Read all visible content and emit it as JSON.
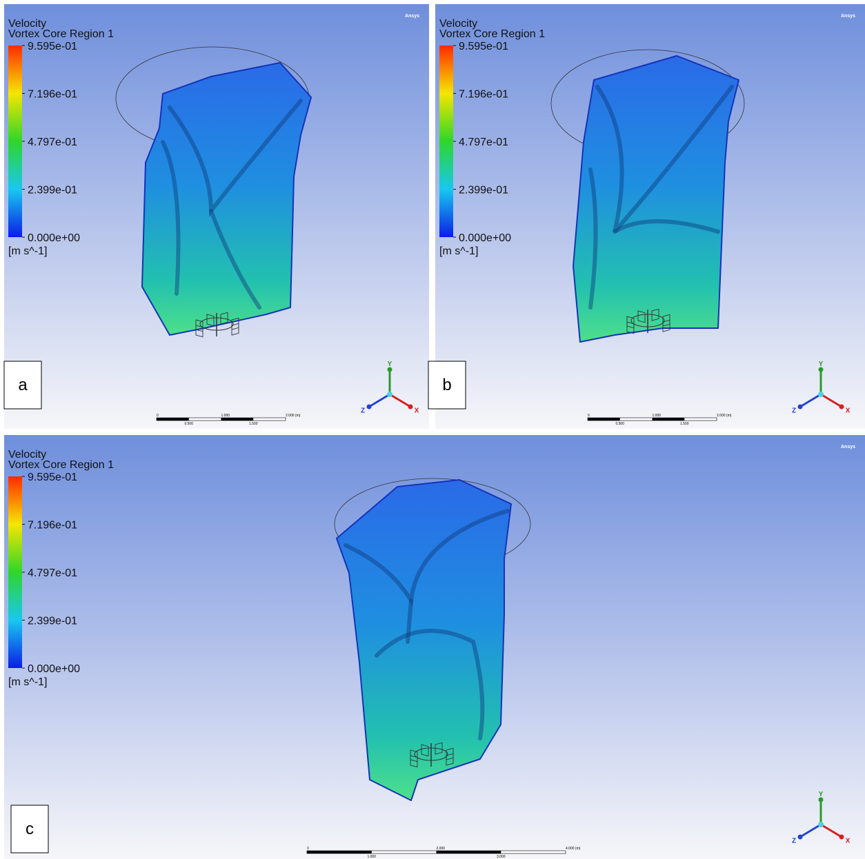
{
  "panels": [
    {
      "label": "a",
      "legend": {
        "title": "Velocity",
        "subtitle": "Vortex Core Region 1",
        "ticks": [
          "9.595e-01",
          "7.196e-01",
          "4.797e-01",
          "2.399e-01",
          "0.000e+00"
        ],
        "unit": "[m s^-1]"
      },
      "logo": "Ansys",
      "scale_bar": {
        "labels": [
          "0",
          "1.000",
          "2.000 (m)"
        ],
        "sub_labels": [
          "0.500",
          "1.500"
        ]
      },
      "axes": [
        "Y",
        "Z",
        "X"
      ]
    },
    {
      "label": "b",
      "legend": {
        "title": "Velocity",
        "subtitle": "Vortex Core Region 1",
        "ticks": [
          "9.595e-01",
          "7.196e-01",
          "4.797e-01",
          "2.399e-01",
          "0.000e+00"
        ],
        "unit": "[m s^-1]"
      },
      "logo": "Ansys",
      "scale_bar": {
        "labels": [
          "0",
          "1.000",
          "2.000 (m)"
        ],
        "sub_labels": [
          "0.500",
          "1.500"
        ]
      },
      "axes": [
        "Y",
        "Z",
        "X"
      ]
    },
    {
      "label": "c",
      "legend": {
        "title": "Velocity",
        "subtitle": "Vortex Core Region 1",
        "ticks": [
          "9.595e-01",
          "7.196e-01",
          "4.797e-01",
          "2.399e-01",
          "0.000e+00"
        ],
        "unit": "[m s^-1]"
      },
      "logo": "Ansys",
      "scale_bar": {
        "labels": [
          "0",
          "2.000",
          "4.000 (m)"
        ],
        "sub_labels": [
          "1.000",
          "3.000"
        ]
      },
      "axes": [
        "Y",
        "Z",
        "X"
      ]
    }
  ]
}
